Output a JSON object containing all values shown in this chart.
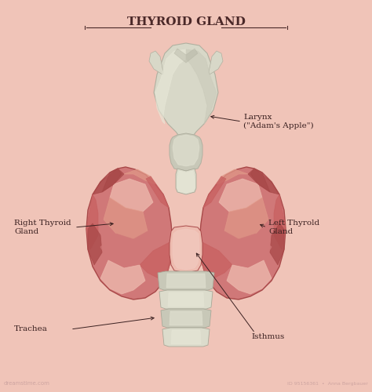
{
  "title": "THYROID GLAND",
  "title_color": "#4a2828",
  "background_color": "#f0c4b8",
  "labels": {
    "larynx": "Larynx\n(\"Adam's Apple\")",
    "right_thyroid": "Right Thyroid\nGland",
    "left_thyroid": "Left Thyrold\nGland",
    "trachea": "Trachea",
    "isthmus": "Isthmus"
  },
  "colors": {
    "thyroid_base": "#c86060",
    "thyroid_mid": "#d07878",
    "thyroid_light": "#e09888",
    "thyroid_pale": "#eebcb0",
    "thyroid_highlight": "#f2cec5",
    "thyroid_dark": "#a84848",
    "larynx_base": "#c8c8b8",
    "larynx_mid": "#d8d8c8",
    "larynx_light": "#e8e8d8",
    "larynx_highlight": "#f0f0e8",
    "larynx_shadow": "#b0b0a0",
    "trachea_dark": "#a8a898",
    "trachea_mid": "#c8c8b8",
    "trachea_light": "#dcdccc",
    "trachea_highlight": "#e8e8d8",
    "arrow_color": "#3a2020",
    "text_color": "#3a2020"
  },
  "font_sizes": {
    "label": 7.5,
    "title": 11
  }
}
